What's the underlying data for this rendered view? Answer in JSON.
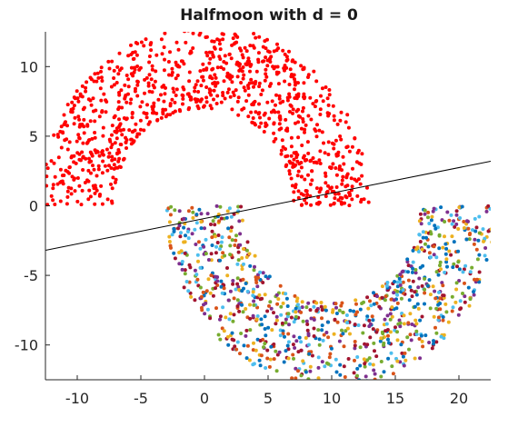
{
  "chart_data": {
    "type": "scatter",
    "title": "Halfmoon with d = 0",
    "xlabel": "",
    "ylabel": "",
    "xlim": [
      -12.5,
      22.5
    ],
    "ylim": [
      -12.5,
      12.5
    ],
    "x_ticks": [
      -10,
      -5,
      0,
      5,
      10,
      15,
      20
    ],
    "y_ticks": [
      10,
      5,
      0,
      -5,
      -10
    ],
    "x_tick_labels": [
      "-10",
      "-5",
      "0",
      "5",
      "10",
      "15",
      "20"
    ],
    "y_tick_labels": [
      "10",
      "5",
      "0",
      "-5",
      "-10"
    ],
    "grid": false,
    "legend": "none",
    "series": [
      {
        "description_shape": "upper half-ring centered at (0, 0), inner radius 7, outer radius 13",
        "center": [
          0,
          0
        ],
        "radius_inner": 7,
        "radius_outer": 13,
        "angle_range_deg": [
          0,
          180
        ],
        "point_count": 1000,
        "color": "#ff0000"
      },
      {
        "description_shape": "lower half-ring centered at (10, 0), inner radius 7, outer radius 13",
        "center": [
          10,
          0
        ],
        "radius_inner": 7,
        "radius_outer": 13,
        "angle_range_deg": [
          180,
          360
        ],
        "point_count": 1000,
        "colors": [
          "#0072bd",
          "#d95319",
          "#edb120",
          "#7e2f8e",
          "#77ac30",
          "#4dbeee",
          "#a2142f"
        ]
      }
    ],
    "decision_line": {
      "x": [
        -12.5,
        22.5
      ],
      "y": [
        -3.2,
        3.2
      ],
      "color": "#000000"
    }
  }
}
